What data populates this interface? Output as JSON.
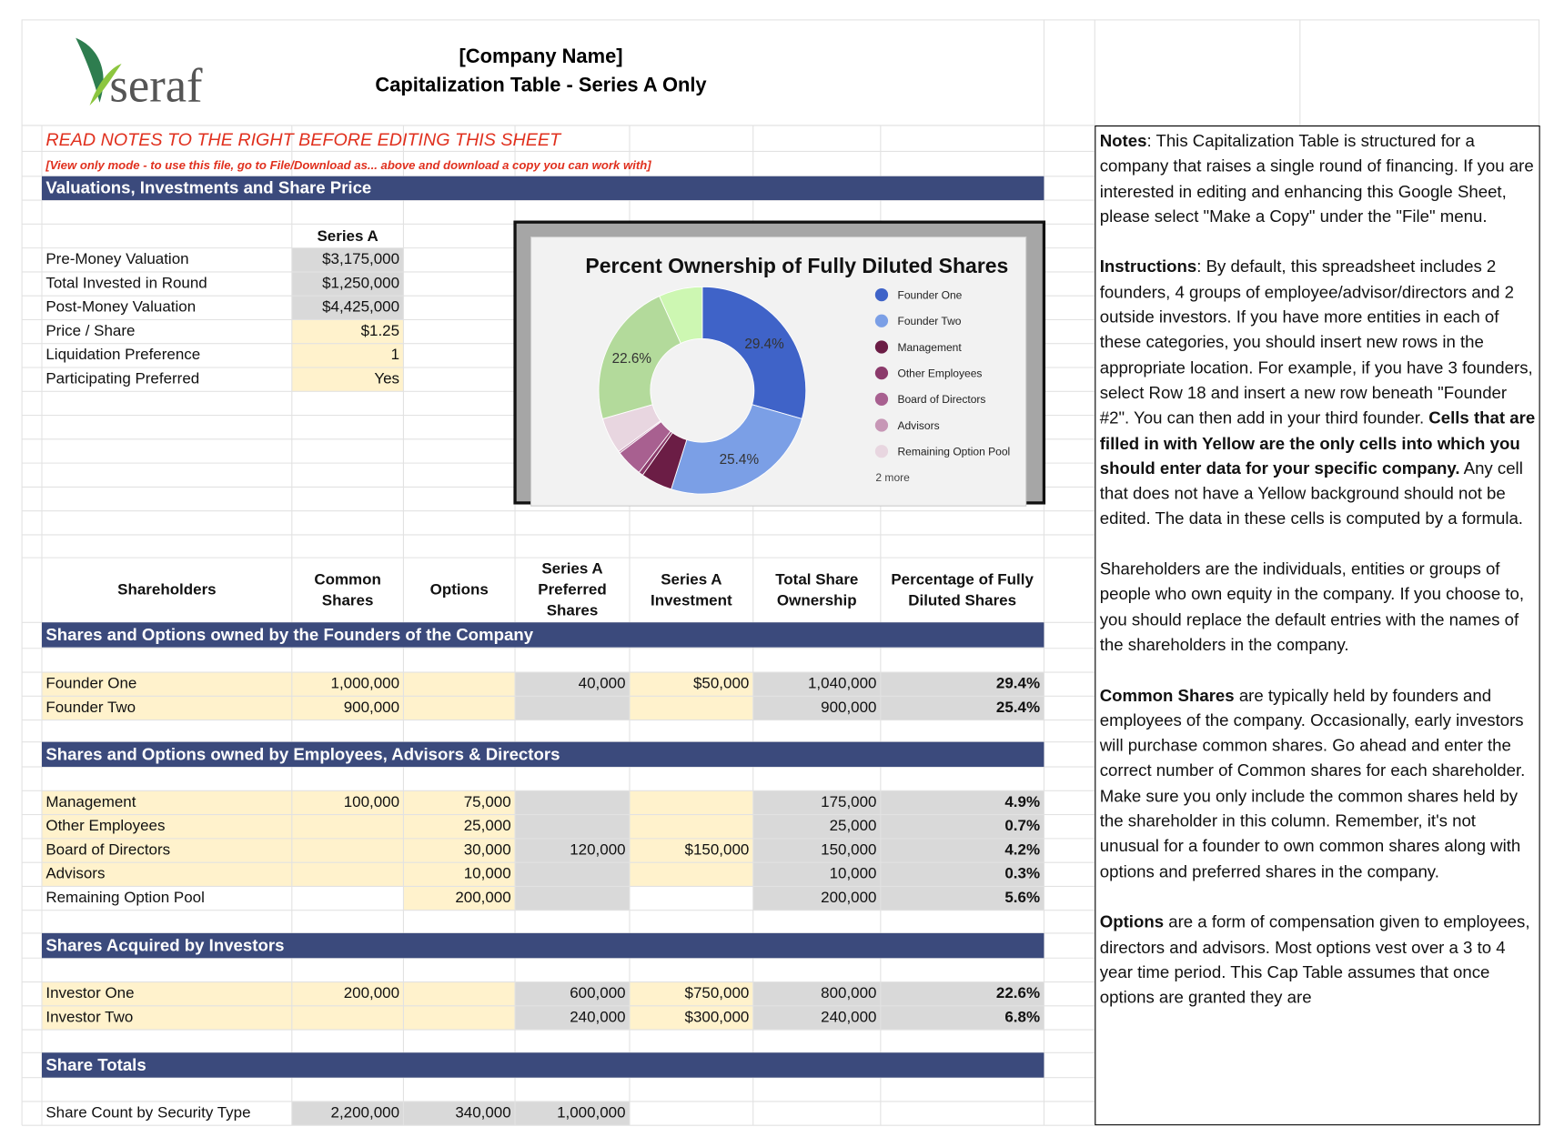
{
  "header": {
    "logo": "seraf",
    "company_name": "[Company Name]",
    "title": "Capitalization Table - Series A Only"
  },
  "warning": "READ NOTES TO THE RIGHT BEFORE EDITING THIS SHEET",
  "view_only": "[View only mode - to use this file, go to File/Download as... above and download a copy you can work with]",
  "valuations": {
    "title": "Valuations, Investments and Share Price",
    "column": "Series A",
    "rows": [
      [
        "Pre-Money Valuation",
        "$3,175,000"
      ],
      [
        "Total Invested in Round",
        "$1,250,000"
      ],
      [
        "Post-Money Valuation",
        "$4,425,000"
      ],
      [
        "Price / Share",
        "$1.25"
      ],
      [
        "Liquidation Preference",
        "1"
      ],
      [
        "Participating Preferred",
        "Yes"
      ]
    ]
  },
  "table": {
    "columns": [
      "Shareholders",
      "Common Shares",
      "Options",
      "Series A Preferred Shares",
      "Series A Investment",
      "Total Share Ownership",
      "Percentage of Fully Diluted Shares"
    ],
    "sections": [
      {
        "title": "Shares and Options owned by the Founders of the Company",
        "rows": [
          [
            "Founder One",
            "1,000,000",
            null,
            "40,000",
            "$50,000",
            "1,040,000",
            "29.4%"
          ],
          [
            "Founder Two",
            "900,000",
            null,
            null,
            null,
            "900,000",
            "25.4%"
          ]
        ]
      },
      {
        "title": "Shares and Options owned by Employees, Advisors & Directors",
        "rows": [
          [
            "Management",
            "100,000",
            "75,000",
            null,
            null,
            "175,000",
            "4.9%"
          ],
          [
            "Other Employees",
            null,
            "25,000",
            null,
            null,
            "25,000",
            "0.7%"
          ],
          [
            "Board of Directors",
            null,
            "30,000",
            "120,000",
            "$150,000",
            "150,000",
            "4.2%"
          ],
          [
            "Advisors",
            null,
            "10,000",
            null,
            null,
            "10,000",
            "0.3%"
          ],
          [
            "Remaining Option Pool",
            null,
            "200,000",
            null,
            null,
            "200,000",
            "5.6%"
          ]
        ]
      },
      {
        "title": "Shares Acquired by Investors",
        "rows": [
          [
            "Investor One",
            "200,000",
            null,
            "600,000",
            "$750,000",
            "800,000",
            "22.6%"
          ],
          [
            "Investor Two",
            null,
            null,
            "240,000",
            "$300,000",
            "240,000",
            "6.8%"
          ]
        ]
      },
      {
        "title": "Share Totals",
        "rows": [
          [
            "Share Count by Security Type",
            "2,200,000",
            "340,000",
            "1,000,000"
          ]
        ]
      }
    ]
  },
  "notes": [
    [
      {
        "text": "Notes",
        "bold": true
      },
      {
        "text": ":  This Capitalization Table is structured for a company that raises a single round of financing. If you are interested in editing and enhancing this Google Sheet, please select \"Make a Copy\" under the \"File\" menu."
      }
    ],
    [
      {
        "text": "Instructions",
        "bold": true
      },
      {
        "text": ":  By default, this spreadsheet includes 2 founders, 4 groups of employee/advisor/directors and 2 outside investors. If you have more entities in each of these categories, you should insert new rows in the appropriate location. For example, if you have 3 founders, select Row 18 and insert a new row beneath \"Founder #2\". You can then add in your third founder. "
      },
      {
        "text": "Cells that are filled in with Yellow are the only cells into which you should enter data for your specific company.",
        "bold": true
      },
      {
        "text": "  Any cell that does not have a Yellow background should not be edited. The data in these cells is computed by a formula."
      }
    ],
    [
      {
        "text": "Shareholders are the individuals, entities or groups of people who own equity in the company. If you choose to, you should replace the default entries with the names of the shareholders in the company."
      }
    ],
    [
      {
        "text": "Common Shares",
        "bold": true
      },
      {
        "text": " are typically held by founders and employees of the company. Occasionally, early investors will purchase common shares. Go ahead and enter the correct number of Common shares for each shareholder. Make sure you only include the common shares held by the shareholder in this column. Remember, it's not unusual for a founder to own common shares along with options and preferred shares in the company."
      }
    ],
    [
      {
        "text": "Options",
        "bold": true
      },
      {
        "text": " are a form of compensation given to employees, directors and advisors. Most options vest over a 3 to 4 year time period. This Cap Table assumes that once options are granted they are"
      }
    ]
  ],
  "chart_data": {
    "type": "donut",
    "title": "Percent Ownership of Fully Diluted Shares",
    "categories": [
      "Founder One",
      "Founder Two",
      "Management",
      "Other Employees",
      "Board of Directors",
      "Advisors",
      "Remaining Option Pool",
      "Investor One",
      "Investor Two"
    ],
    "values": [
      29.4,
      25.4,
      4.9,
      0.7,
      4.2,
      0.3,
      5.6,
      22.6,
      6.8
    ],
    "value_labels": [
      "29.4%",
      "25.4%",
      null,
      null,
      null,
      null,
      null,
      "22.6%",
      null
    ],
    "colors": [
      "#3f63c8",
      "#7b9fe6",
      "#6b1d45",
      "#8b3a6b",
      "#a86090",
      "#c797b6",
      "#e8d6e0",
      "#b3da9b",
      "#cdf7b2"
    ],
    "legend_more": "2 more",
    "legend": "right"
  }
}
